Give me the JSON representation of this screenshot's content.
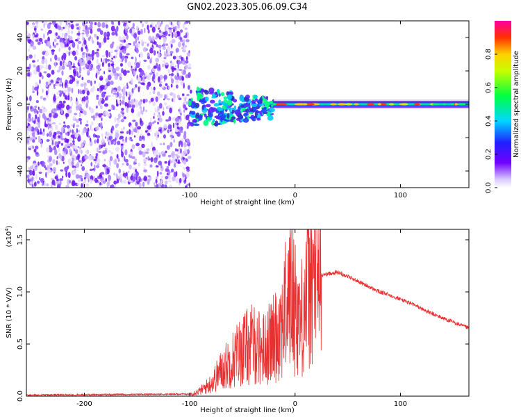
{
  "title": "GN02.2023.305.06.09.C34",
  "chart_data": [
    {
      "type": "heatmap",
      "xlabel": "Height of straight line (km)",
      "ylabel": "Frequency (Hz)",
      "xlim": [
        -255,
        165
      ],
      "ylim": [
        -50,
        50
      ],
      "xticks": [
        -200,
        -100,
        0,
        100
      ],
      "yticks": [
        -40,
        -20,
        0,
        20,
        40
      ],
      "colorbar": {
        "label": "Normalized spectral amplitude",
        "ticks": [
          "0.0",
          "0.2",
          "0.4",
          "0.6",
          "0.8"
        ],
        "range": [
          0,
          1
        ]
      },
      "regions": [
        {
          "x_range": [
            -255,
            -100
          ],
          "freq_range": [
            -50,
            50
          ],
          "description_amplitude": 0.15
        },
        {
          "x_range": [
            -100,
            -20
          ],
          "freq_range": [
            -15,
            10
          ],
          "description_amplitude": 0.4
        },
        {
          "x_range": [
            -20,
            165
          ],
          "freq_range": [
            -3,
            3
          ],
          "description_amplitude": 0.5
        }
      ]
    },
    {
      "type": "line",
      "xlabel": "Height of straight line (km)",
      "ylabel": "SNR (10 * V/V)",
      "yscale_label": "(x10",
      "yscale_exp": "4",
      "yscale_close": ")",
      "xlim": [
        -255,
        165
      ],
      "ylim": [
        0,
        1.6
      ],
      "xticks": [
        -200,
        -100,
        0,
        100
      ],
      "yticks": [
        "0.0",
        "0.5",
        "1.0",
        "1.5"
      ],
      "color": "#e83030",
      "series": [
        {
          "x": [
            -255,
            -100,
            -90,
            -80,
            -70,
            -60,
            -50,
            -40,
            -30,
            -20,
            -10,
            -5,
            0,
            5,
            10,
            15,
            20,
            30,
            40,
            50,
            60,
            70,
            80,
            90,
            100,
            110,
            120,
            130,
            140,
            150,
            165
          ],
          "y": [
            0.01,
            0.02,
            0.05,
            0.12,
            0.25,
            0.35,
            0.45,
            0.5,
            0.45,
            0.55,
            0.8,
            1.0,
            0.9,
            0.7,
            0.95,
            1.1,
            1.15,
            1.17,
            1.19,
            1.15,
            1.1,
            1.05,
            1.0,
            0.97,
            0.93,
            0.89,
            0.84,
            0.79,
            0.75,
            0.71,
            0.65
          ]
        }
      ]
    }
  ]
}
